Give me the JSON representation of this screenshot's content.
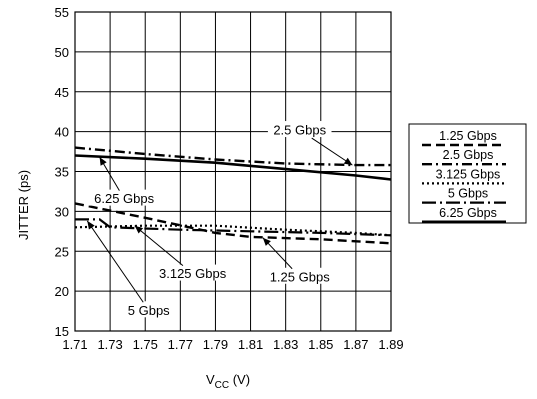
{
  "chart_data": {
    "type": "line",
    "title": "",
    "xlabel": "V",
    "xlabel_sub": "CC",
    "xlabel_unit": " (V)",
    "ylabel": "JITTER (ps)",
    "xlim": [
      1.71,
      1.89
    ],
    "ylim": [
      15,
      55
    ],
    "x_ticks": [
      1.71,
      1.73,
      1.75,
      1.77,
      1.79,
      1.81,
      1.83,
      1.85,
      1.87,
      1.89
    ],
    "x_tick_labels": [
      "1.71",
      "1.73",
      "1.75",
      "1.77",
      "1.79",
      "1.81",
      "1.83",
      "1.85",
      "1.87",
      "1.89"
    ],
    "y_ticks": [
      15,
      20,
      25,
      30,
      35,
      40,
      45,
      50,
      55
    ],
    "y_tick_labels": [
      "15",
      "20",
      "25",
      "30",
      "35",
      "40",
      "45",
      "50",
      "55"
    ],
    "grid": true,
    "legend_position": "right",
    "series": [
      {
        "name": "1.25 Gbps",
        "dash": "dash",
        "color": "#000000",
        "x": [
          1.71,
          1.75,
          1.79,
          1.81,
          1.85,
          1.89
        ],
        "y": [
          31,
          29.2,
          27.3,
          26.8,
          26.5,
          26
        ]
      },
      {
        "name": "2.5 Gbps",
        "dash": "dashdot",
        "color": "#000000",
        "x": [
          1.71,
          1.75,
          1.79,
          1.83,
          1.87,
          1.89
        ],
        "y": [
          38,
          37.2,
          36.5,
          36,
          35.8,
          35.8
        ]
      },
      {
        "name": "3.125 Gbps",
        "dash": "dot",
        "color": "#000000",
        "x": [
          1.71,
          1.75,
          1.79,
          1.83,
          1.87,
          1.89
        ],
        "y": [
          28,
          28.2,
          28.2,
          27.7,
          27.3,
          27
        ]
      },
      {
        "name": "5 Gbps",
        "dash": "longdashdot",
        "color": "#000000",
        "x": [
          1.71,
          1.724,
          1.73,
          1.77,
          1.81,
          1.85,
          1.89
        ],
        "y": [
          29,
          29,
          28,
          27.7,
          27.5,
          27.3,
          27
        ]
      },
      {
        "name": "6.25 Gbps",
        "dash": "solid",
        "color": "#000000",
        "x": [
          1.71,
          1.75,
          1.79,
          1.83,
          1.87,
          1.89
        ],
        "y": [
          37,
          36.6,
          36.1,
          35.3,
          34.5,
          34
        ]
      }
    ],
    "annotations": [
      {
        "text": "2.5 Gbps",
        "series": "2.5 Gbps",
        "label_x": 1.838,
        "label_y": 40.2,
        "point_x": 1.868,
        "point_y": 35.8
      },
      {
        "text": "6.25 Gbps",
        "series": "6.25 Gbps",
        "label_x": 1.738,
        "label_y": 31.6,
        "point_x": 1.724,
        "point_y": 36.8
      },
      {
        "text": "3.125 Gbps",
        "series": "3.125 Gbps",
        "label_x": 1.777,
        "label_y": 22.2,
        "point_x": 1.744,
        "point_y": 28.2
      },
      {
        "text": "1.25 Gbps",
        "series": "1.25 Gbps",
        "label_x": 1.838,
        "label_y": 21.8,
        "point_x": 1.817,
        "point_y": 26.7
      },
      {
        "text": "5 Gbps",
        "series": "5 Gbps",
        "label_x": 1.752,
        "label_y": 17.6,
        "point_x": 1.717,
        "point_y": 28.8
      }
    ]
  }
}
